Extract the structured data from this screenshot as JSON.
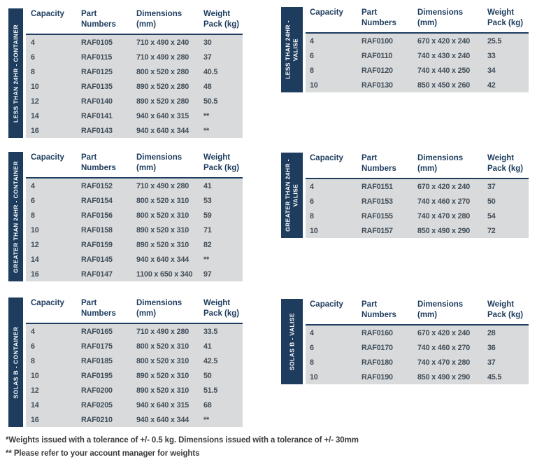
{
  "colors": {
    "navy": "#1d3c5e",
    "row_bg": "#d9dadb",
    "data_text": "#414e59"
  },
  "columns": [
    "Capacity",
    "Part\nNumbers",
    "Dimensions\n(mm)",
    "Weight\nPack (kg)"
  ],
  "footnotes": {
    "line1": "*Weights issued with a tolerance of +/- 0.5 kg. Dimensions issued with a tolerance of +/- 30mm",
    "line2": "** Please refer to your account manager for weights"
  },
  "tables": [
    {
      "id": "less-than-24hr-container",
      "side_label": "LESS THAN 24HR - CONTAINER",
      "rows": [
        [
          "4",
          "RAF0105",
          "710 x 490 x 240",
          "30"
        ],
        [
          "6",
          "RAF0115",
          "710 x 490 x 280",
          "37"
        ],
        [
          "8",
          "RAF0125",
          "800 x 520 x 280",
          "40.5"
        ],
        [
          "10",
          "RAF0135",
          "890 x 520 x 280",
          "48"
        ],
        [
          "12",
          "RAF0140",
          "890 x 520 x 280",
          "50.5"
        ],
        [
          "14",
          "RAF0141",
          "940 x 640 x 315",
          "**"
        ],
        [
          "16",
          "RAF0143",
          "940 x 640 x 344",
          "**"
        ]
      ]
    },
    {
      "id": "less-than-24hr-valise",
      "side_label": "LESS THAN 24HR -\nVALISE",
      "rows": [
        [
          "4",
          "RAF0100",
          "670 x 420 x 240",
          "25.5"
        ],
        [
          "6",
          "RAF0110",
          "740 x 430 x 240",
          "33"
        ],
        [
          "8",
          "RAF0120",
          "740 x 440 x 250",
          "34"
        ],
        [
          "10",
          "RAF0130",
          "850 x 450 x 260",
          "42"
        ]
      ]
    },
    {
      "id": "greater-than-24hr-container",
      "side_label": "GREATER THAN 24HR - CONTAINER",
      "rows": [
        [
          "4",
          "RAF0152",
          "710 x 490 x 280",
          "41"
        ],
        [
          "6",
          "RAF0154",
          "800 x 520 x 310",
          "53"
        ],
        [
          "8",
          "RAF0156",
          "800 x 520 x 310",
          "59"
        ],
        [
          "10",
          "RAF0158",
          "890 x 520 x 310",
          "71"
        ],
        [
          "12",
          "RAF0159",
          "890 x 520 x 310",
          "82"
        ],
        [
          "14",
          "RAF0145",
          "940 x 640 x 344",
          "**"
        ],
        [
          "16",
          "RAF0147",
          "1100 x 650 x 340",
          "97"
        ]
      ]
    },
    {
      "id": "greater-than-24hr-valise",
      "side_label": "GREATER THAN 24HR -\nVALISE",
      "rows": [
        [
          "4",
          "RAF0151",
          "670 x 420 x 240",
          "37"
        ],
        [
          "6",
          "RAF0153",
          "740 x 460 x 270",
          "50"
        ],
        [
          "8",
          "RAF0155",
          "740 x 470 x 280",
          "54"
        ],
        [
          "10",
          "RAF0157",
          "850 x 490 x 290",
          "72"
        ]
      ]
    },
    {
      "id": "solas-b-container",
      "side_label": "SOLAS B - CONTAINER",
      "rows": [
        [
          "4",
          "RAF0165",
          "710 x 490 x 280",
          "33.5"
        ],
        [
          "6",
          "RAF0175",
          "800 x 520 x 310",
          "41"
        ],
        [
          "8",
          "RAF0185",
          "800 x 520 x 310",
          "42.5"
        ],
        [
          "10",
          "RAF0195",
          "890 x 520 x 310",
          "50"
        ],
        [
          "12",
          "RAF0200",
          "890 x 520 x 310",
          "51.5"
        ],
        [
          "14",
          "RAF0205",
          "940 x 640 x 315",
          "68"
        ],
        [
          "16",
          "RAF0210",
          "940 x 640 x 344",
          "**"
        ]
      ]
    },
    {
      "id": "solas-b-valise",
      "side_label": "SOLAS B - VALISE",
      "rows": [
        [
          "4",
          "RAF0160",
          "670 x 420 x 240",
          "28"
        ],
        [
          "6",
          "RAF0170",
          "740 x 460 x 270",
          "36"
        ],
        [
          "8",
          "RAF0180",
          "740 x 470 x 280",
          "37"
        ],
        [
          "10",
          "RAF0190",
          "850 x 490 x 290",
          "45.5"
        ]
      ]
    }
  ]
}
